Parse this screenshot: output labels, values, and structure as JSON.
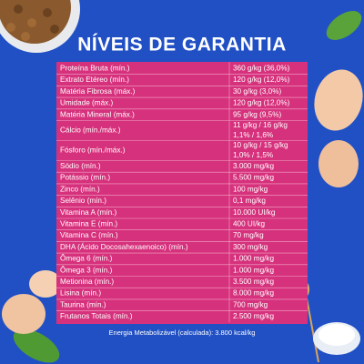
{
  "title": "NÍVEIS DE GARANTIA",
  "table": {
    "rows": [
      {
        "label": "Proteína Bruta (mín.)",
        "value": [
          "360 g/kg (36,0%)"
        ]
      },
      {
        "label": "Extrato Etéreo (mín.)",
        "value": [
          "120 g/kg (12,0%)"
        ]
      },
      {
        "label": "Matéria Fibrosa (máx.)",
        "value": [
          "30 g/kg (3,0%)"
        ]
      },
      {
        "label": "Umidade (máx.)",
        "value": [
          "120 g/kg (12,0%)"
        ]
      },
      {
        "label": "Matéria Mineral (máx.)",
        "value": [
          "95 g/kg (9,5%)"
        ]
      },
      {
        "label": "Cálcio (mín./máx.)",
        "value": [
          "11 g/kg / 16 g/kg",
          "1,1% / 1,6%"
        ]
      },
      {
        "label": "Fósforo (mín./máx.)",
        "value": [
          "10 g/kg / 15 g/kg",
          "1,0% / 1,5%"
        ]
      },
      {
        "label": "Sódio (mín.)",
        "value": [
          "3.000 mg/kg"
        ]
      },
      {
        "label": "Potássio (mín.)",
        "value": [
          "5.500 mg/kg"
        ]
      },
      {
        "label": "Zinco (mín.)",
        "value": [
          "100 mg/kg"
        ]
      },
      {
        "label": "Selênio (mín.)",
        "value": [
          "0,1 mg/kg"
        ]
      },
      {
        "label": "Vitamina A (mín.)",
        "value": [
          "10.000 UI/kg"
        ]
      },
      {
        "label": "Vitamina E (mín.)",
        "value": [
          "400 UI/kg"
        ]
      },
      {
        "label": "Vitamina C (mín.)",
        "value": [
          "70 mg/kg"
        ]
      },
      {
        "label": "DHA (Ácido Docosahexaenoico) (mín.)",
        "value": [
          "300 mg/kg"
        ]
      },
      {
        "label": "Ômega 6 (mín.)",
        "value": [
          "1.000 mg/kg"
        ]
      },
      {
        "label": "Ômega 3 (mín.)",
        "value": [
          "1.000 mg/kg"
        ]
      },
      {
        "label": "Metionina (mín.)",
        "value": [
          "3.500 mg/kg"
        ]
      },
      {
        "label": "Lisina (mín.)",
        "value": [
          "8.000 mg/kg"
        ]
      },
      {
        "label": "Taurina (mín.)",
        "value": [
          "700 mg/kg"
        ]
      },
      {
        "label": "Frutanos Totais (mín.)",
        "value": [
          "2.500 mg/kg"
        ]
      }
    ]
  },
  "footer": "Energia Metabolizável (calculada): 3.800 kcal/kg"
}
